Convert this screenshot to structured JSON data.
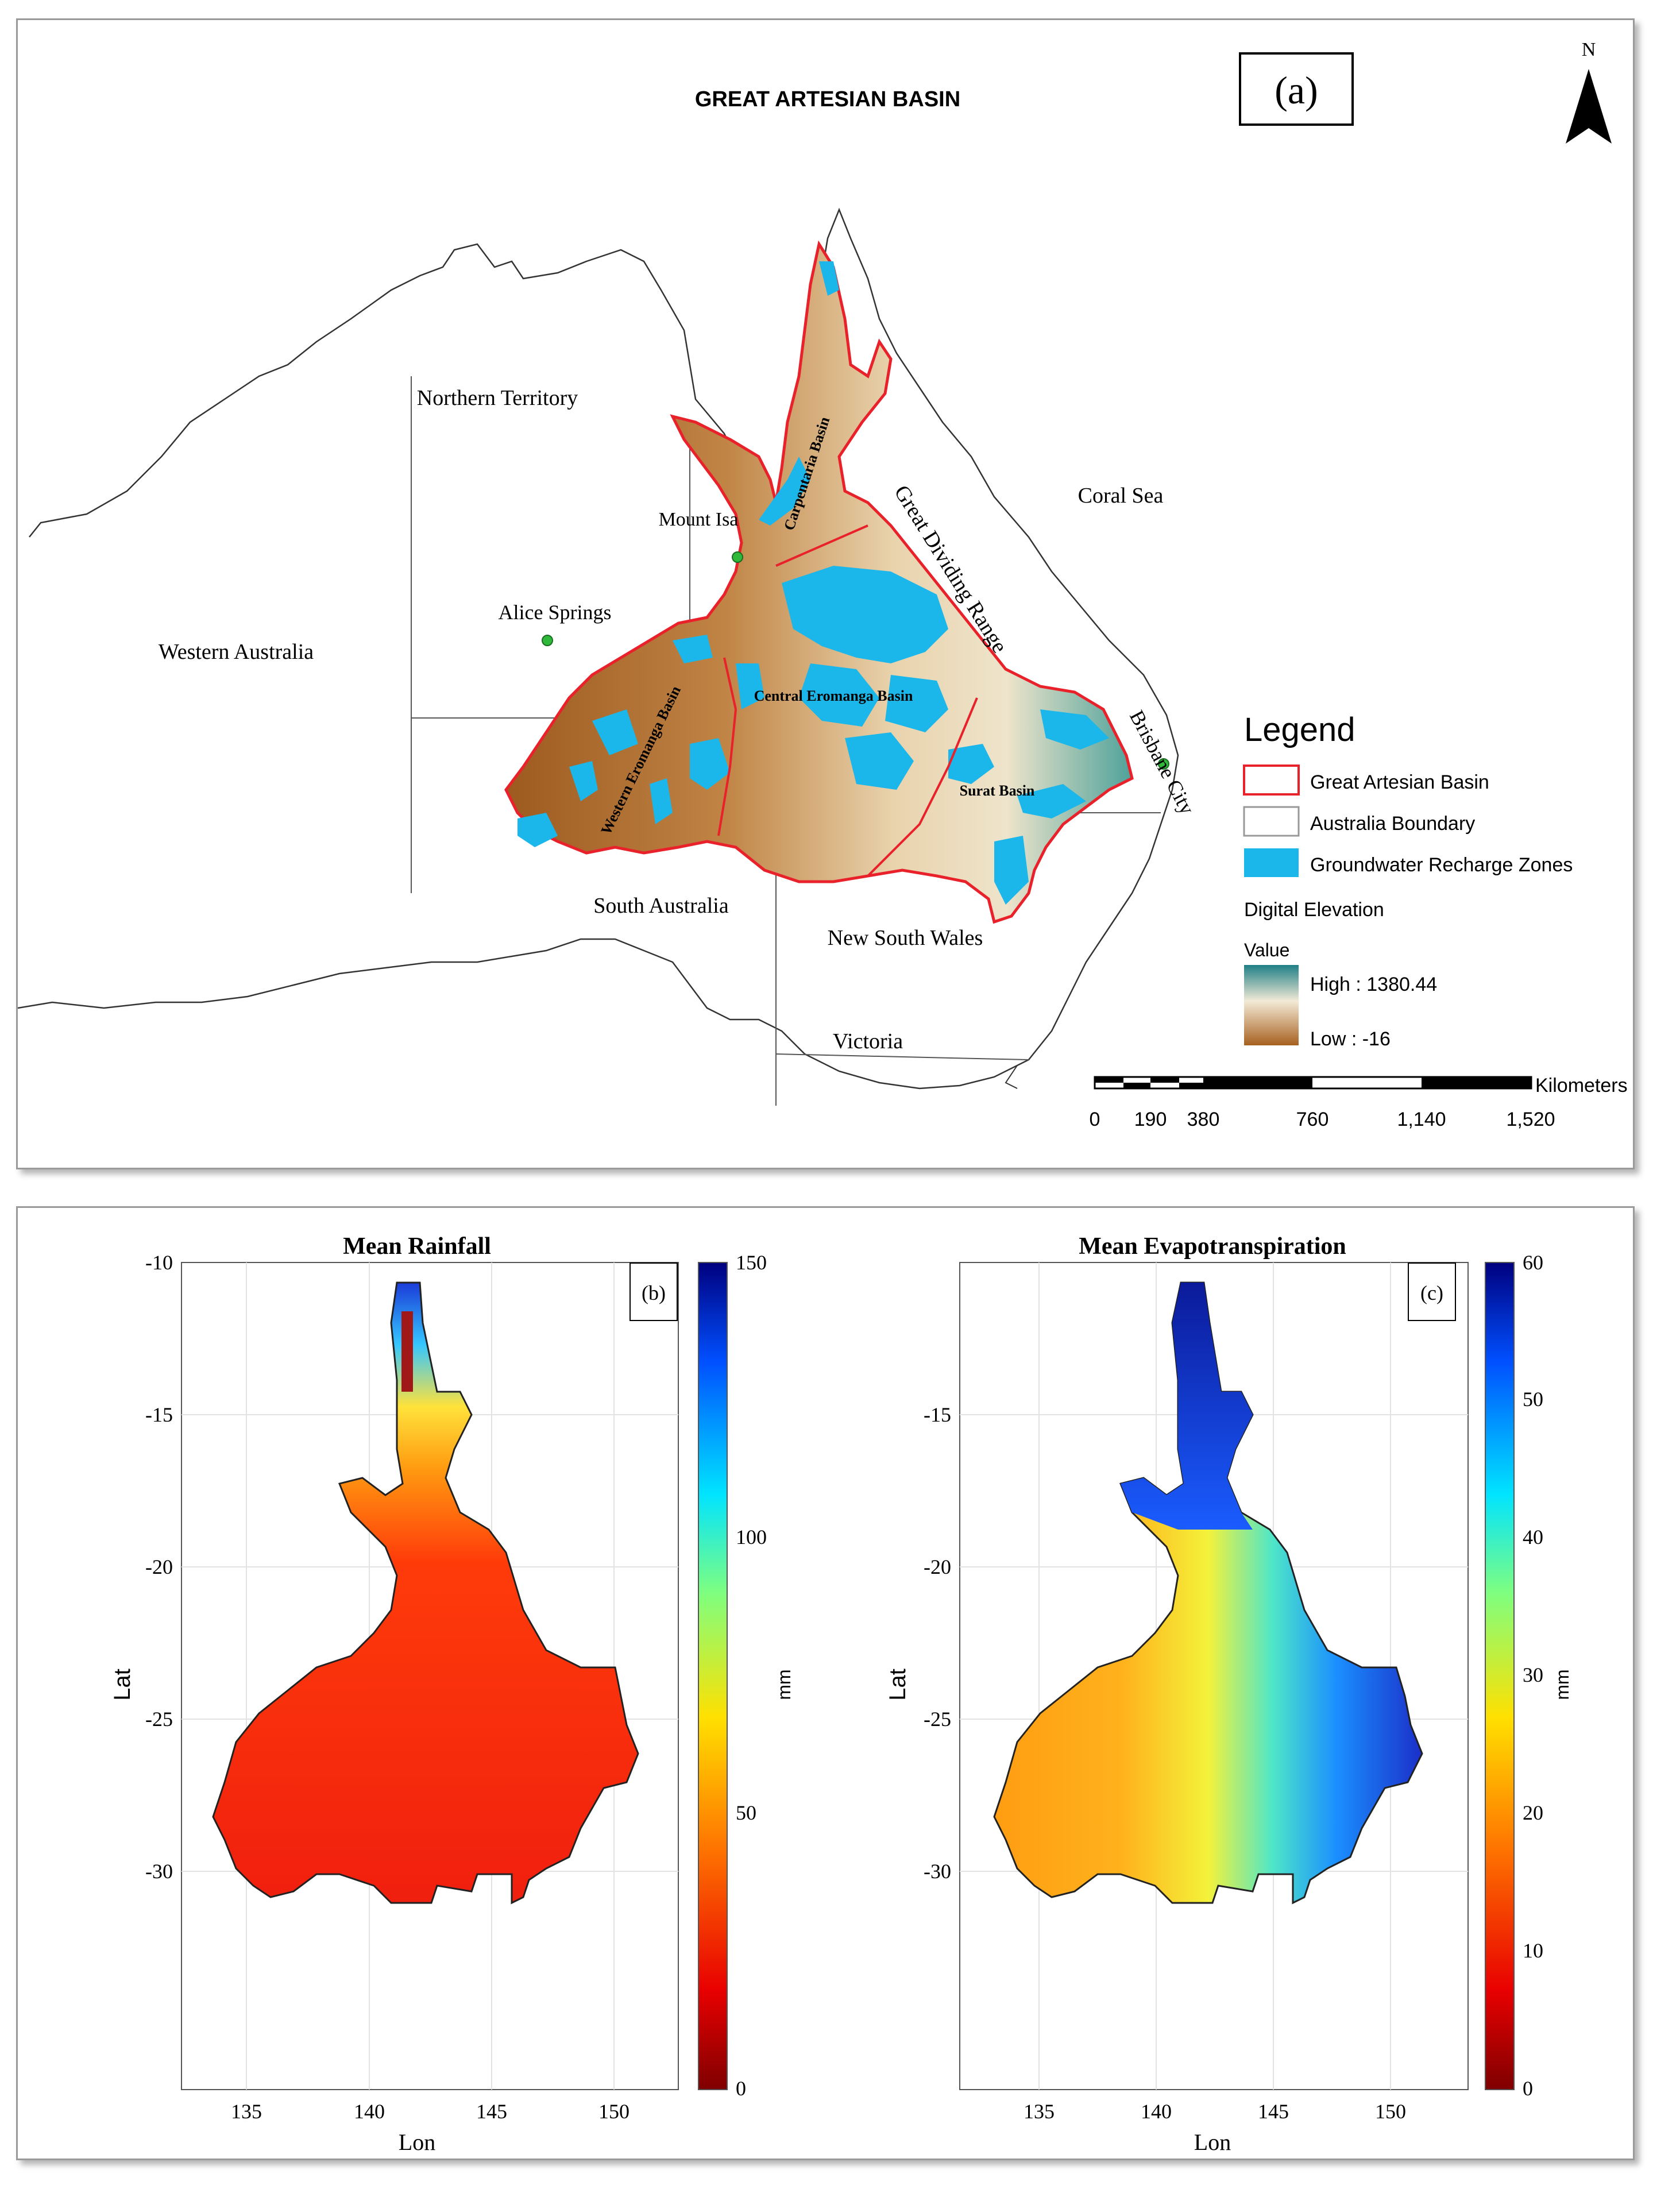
{
  "panel_a": {
    "title": "GREAT ARTESIAN BASIN",
    "panel_label": "(a)",
    "north_label": "N",
    "regions": {
      "northern_territory": "Northern Territory",
      "western_australia": "Western Australia",
      "south_australia": "South Australia",
      "new_south_wales": "New South Wales",
      "victoria": "Victoria",
      "coral_sea": "Coral Sea"
    },
    "places": {
      "mount_isa": "Mount Isa",
      "alice_springs": "Alice Springs",
      "brisbane_city": "Brisbane City",
      "great_dividing_range": "Great Dividing Range"
    },
    "basins": {
      "carpentaria": "Carpentaria Basin",
      "western_eromanga": "Western Eromanga Basin",
      "central_eromanga": "Central Eromanga Basin",
      "surat": "Surat Basin"
    },
    "legend": {
      "title": "Legend",
      "gab": "Great Artesian Basin",
      "boundary": "Australia Boundary",
      "recharge": "Groundwater Recharge Zones",
      "elevation_title": "Digital Elevation",
      "value_label": "Value",
      "high": "High : 1380.44",
      "low": "Low : -16"
    },
    "scale_bar": {
      "unit": "Kilometers",
      "ticks": [
        "0",
        "190",
        "380",
        "760",
        "1,140",
        "1,520"
      ]
    },
    "colors": {
      "basin_outline": "#e8212a",
      "recharge": "#1cb7ea",
      "elevation_high": "#2f8f8a",
      "elevation_mid": "#f1e2c4",
      "elevation_low": "#a45f22"
    }
  },
  "panel_b": {
    "title": "Mean Rainfall",
    "panel_label": "(b)",
    "xlabel": "Lon",
    "ylabel": "Lat",
    "xticks": [
      "135",
      "140",
      "145",
      "150"
    ],
    "yticks": [
      "-10",
      "-15",
      "-20",
      "-25",
      "-30"
    ],
    "colorbar_unit": "mm",
    "colorbar_ticks": [
      "0",
      "50",
      "100",
      "150"
    ]
  },
  "panel_c": {
    "title": "Mean Evapotranspiration",
    "panel_label": "(c)",
    "xlabel": "Lon",
    "ylabel": "Lat",
    "xticks": [
      "135",
      "140",
      "145",
      "150"
    ],
    "yticks": [
      "-15",
      "-20",
      "-25",
      "-30"
    ],
    "colorbar_unit": "mm",
    "colorbar_ticks": [
      "0",
      "10",
      "20",
      "30",
      "40",
      "50",
      "60"
    ]
  }
}
